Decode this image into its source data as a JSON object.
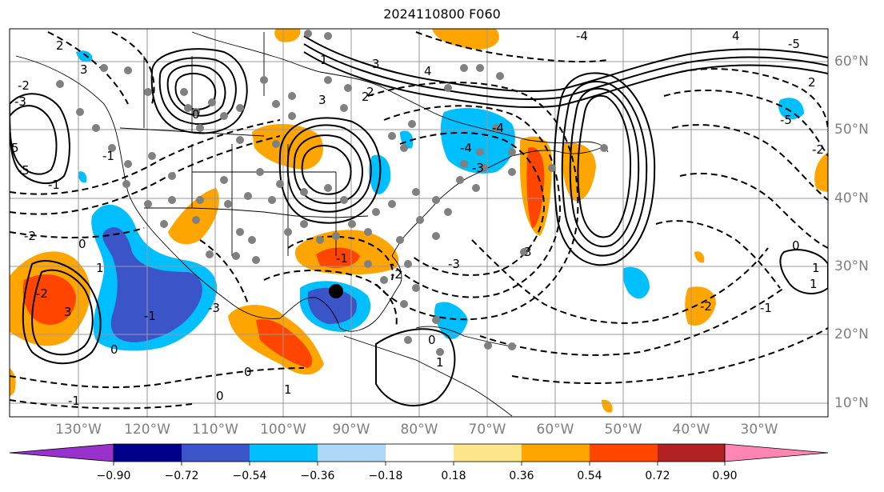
{
  "title": "2024110800 F060",
  "longitude_labels": [
    "130°W",
    "120°W",
    "110°W",
    "100°W",
    "90°W",
    "80°W",
    "70°W",
    "60°W",
    "50°W",
    "40°W",
    "30°W"
  ],
  "latitude_labels": [
    "60°N",
    "50°N",
    "40°N",
    "30°N",
    "20°N",
    "10°N"
  ],
  "contour_labels": [
    "2",
    "3",
    "-2",
    "-3",
    "0",
    "-1",
    "3",
    "2",
    "5",
    "-5",
    "-2",
    "-1",
    "0",
    "-2",
    "1",
    "3",
    "-1",
    "0",
    "4",
    "-4",
    "3",
    "1",
    "2",
    "-3",
    "-3",
    "0",
    "1",
    "-1",
    "0",
    "-1",
    "-4",
    "-5",
    "-2",
    "1",
    "0",
    "1",
    "-1",
    "2",
    "4",
    "-4",
    "-5",
    "3",
    "-3",
    "-2",
    "0",
    "1",
    "-2"
  ],
  "colorbar": {
    "colors": [
      "#9932cc",
      "#00008b",
      "#3b55c8",
      "#00bfff",
      "#add8f7",
      "#ffffff",
      "#fde68a",
      "#ffa500",
      "#ff4500",
      "#b22222",
      "#ff85b3"
    ],
    "tick_labels": [
      "−0.90",
      "−0.72",
      "−0.54",
      "−0.36",
      "−0.18",
      "0.18",
      "0.36",
      "0.54",
      "0.72",
      "0.90"
    ]
  },
  "map_colors": {
    "land_line": "#000000",
    "grid": "#999999",
    "contour": "#000000"
  }
}
